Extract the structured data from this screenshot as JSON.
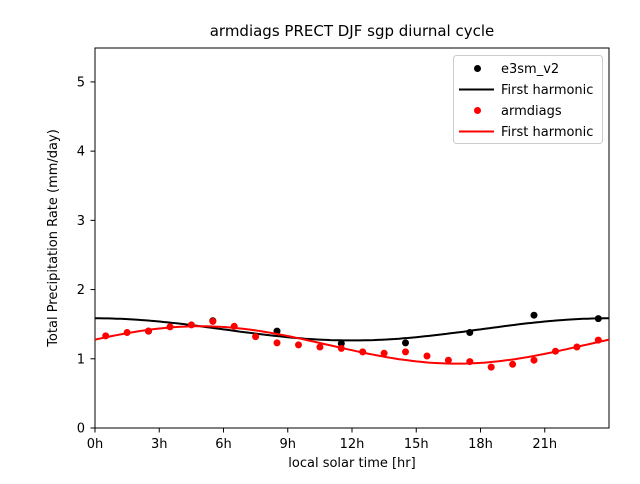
{
  "figure": {
    "background": "#ffffff",
    "accent_black": "#000000",
    "accent_red": "#ff0000"
  },
  "chart_data": {
    "type": "scatter",
    "title": "armdiags PRECT DJF sgp diurnal cycle",
    "xlabel": "local solar time [hr]",
    "ylabel": "Total Precipitation Rate (mm/day)",
    "xlim": [
      0,
      24
    ],
    "ylim": [
      0,
      5.49
    ],
    "grid": false,
    "xticks": {
      "values": [
        0,
        3,
        6,
        9,
        12,
        15,
        18,
        21
      ],
      "labels": [
        "0h",
        "3h",
        "6h",
        "9h",
        "12h",
        "15h",
        "18h",
        "21h"
      ]
    },
    "yticks": {
      "values": [
        0,
        1,
        2,
        3,
        4,
        5
      ],
      "labels": [
        "0",
        "1",
        "2",
        "3",
        "4",
        "5"
      ]
    },
    "series": [
      {
        "name": "e3sm_v2",
        "slug": "e3sm_v2-points",
        "kind": "scatter",
        "color": "#000000",
        "marker_radius": 3.5,
        "x": [
          2.5,
          5.5,
          8.5,
          11.5,
          14.5,
          17.5,
          20.5,
          23.5
        ],
        "y": [
          1.4,
          1.55,
          1.4,
          1.22,
          1.23,
          1.38,
          1.63,
          1.58
        ]
      },
      {
        "name": "First harmonic",
        "slug": "e3sm_v2-first-harmonic",
        "kind": "line",
        "color": "#000000",
        "line_width": 2,
        "harmonic": {
          "mean": 1.425,
          "amplitude": 0.16,
          "peak_hour": 0.0
        }
      },
      {
        "name": "armdiags",
        "slug": "armdiags-points",
        "kind": "scatter",
        "color": "#ff0000",
        "marker_radius": 3.5,
        "x": [
          0.5,
          1.5,
          2.5,
          3.5,
          4.5,
          5.5,
          6.5,
          7.5,
          8.5,
          9.5,
          10.5,
          11.5,
          12.5,
          13.5,
          14.5,
          15.5,
          16.5,
          17.5,
          18.5,
          19.5,
          20.5,
          21.5,
          22.5,
          23.5
        ],
        "y": [
          1.33,
          1.38,
          1.4,
          1.46,
          1.49,
          1.54,
          1.47,
          1.32,
          1.23,
          1.2,
          1.17,
          1.15,
          1.1,
          1.08,
          1.1,
          1.04,
          0.98,
          0.96,
          0.88,
          0.92,
          0.98,
          1.11,
          1.17,
          1.27
        ]
      },
      {
        "name": "First harmonic",
        "slug": "armdiags-first-harmonic",
        "kind": "line",
        "color": "#ff0000",
        "line_width": 2,
        "harmonic": {
          "mean": 1.2,
          "amplitude": 0.27,
          "peak_hour": 4.9
        }
      }
    ],
    "legend": {
      "position": "upper right",
      "entries": [
        {
          "label": "e3sm_v2",
          "marker": "dot",
          "color": "#000000"
        },
        {
          "label": "First harmonic",
          "marker": "line",
          "color": "#000000"
        },
        {
          "label": "armdiags",
          "marker": "dot",
          "color": "#ff0000"
        },
        {
          "label": "First harmonic",
          "marker": "line",
          "color": "#ff0000"
        }
      ]
    }
  }
}
